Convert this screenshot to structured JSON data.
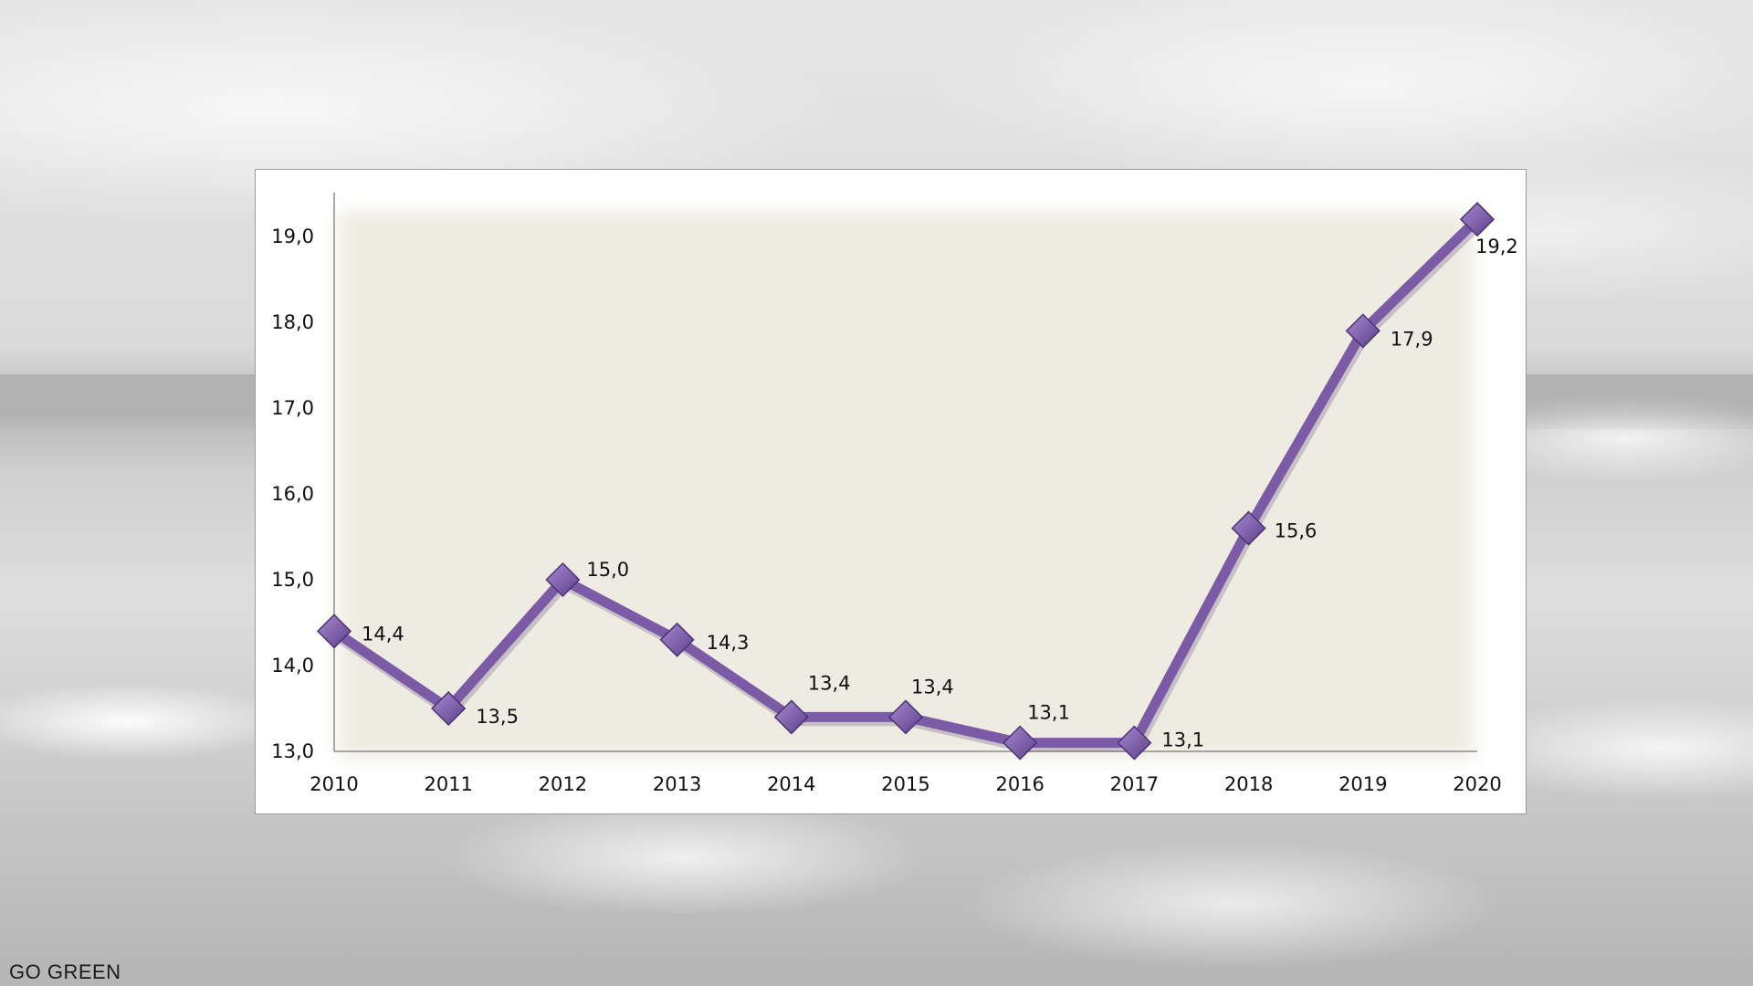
{
  "footer": {
    "brand": "GO GREEN"
  },
  "colors": {
    "line": "#7b5aa6",
    "marker": "#7a58a8",
    "plot_bg": "#eeece2"
  },
  "chart_data": {
    "type": "line",
    "title": "",
    "xlabel": "",
    "ylabel": "",
    "categories": [
      "2010",
      "2011",
      "2012",
      "2013",
      "2014",
      "2015",
      "2016",
      "2017",
      "2018",
      "2019",
      "2020"
    ],
    "series": [
      {
        "values": [
          14.4,
          13.5,
          15.0,
          14.3,
          13.4,
          13.4,
          13.1,
          13.1,
          15.6,
          17.9,
          19.2
        ]
      }
    ],
    "data_labels": [
      "14,4",
      "13,5",
      "15,0",
      "14,3",
      "13,4",
      "13,4",
      "13,1",
      "13,1",
      "15,6",
      "17,9",
      "19,2"
    ],
    "yticks": [
      13,
      14,
      15,
      16,
      17,
      18,
      19
    ],
    "ytick_labels": [
      "13,0",
      "14,0",
      "15,0",
      "16,0",
      "17,0",
      "18,0",
      "19,0"
    ],
    "ylim": [
      13,
      19.5
    ],
    "grid": false,
    "legend": "none",
    "marker": "diamond"
  }
}
